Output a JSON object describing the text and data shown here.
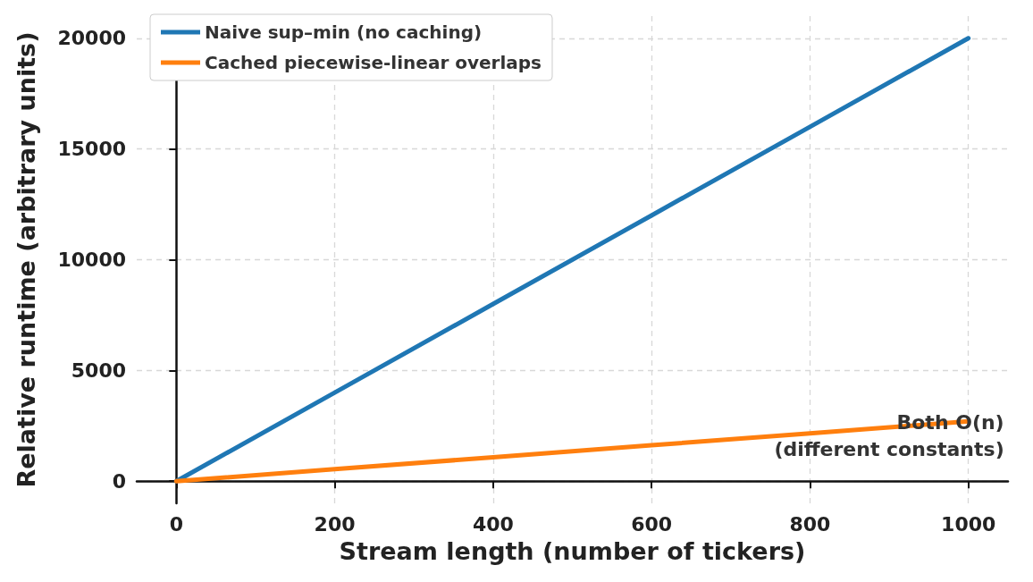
{
  "chart_data": {
    "type": "line",
    "xlabel": "Stream length (number of tickers)",
    "ylabel": "Relative runtime (arbitrary units)",
    "x": [
      0,
      200,
      400,
      600,
      800,
      1000
    ],
    "series": [
      {
        "name": "Naive sup–min (no caching)",
        "color": "#1f77b4",
        "values": [
          0,
          4000,
          8000,
          12000,
          16000,
          20000
        ]
      },
      {
        "name": "Cached piecewise-linear overlaps",
        "color": "#ff7f0e",
        "values": [
          0,
          540,
          1080,
          1620,
          2160,
          2700
        ]
      }
    ],
    "xlim": [
      -50,
      1050
    ],
    "xticks": [
      0,
      200,
      400,
      600,
      800,
      1000
    ],
    "ylim": [
      -1000,
      21000
    ],
    "yticks": [
      0,
      5000,
      10000,
      15000,
      20000
    ],
    "grid": true,
    "legend": "top left",
    "line_style": "solid",
    "marker": "none",
    "annotations": [
      {
        "text": "Both O(n)\n(different constants)",
        "x": 1000,
        "y": 2700
      }
    ]
  }
}
